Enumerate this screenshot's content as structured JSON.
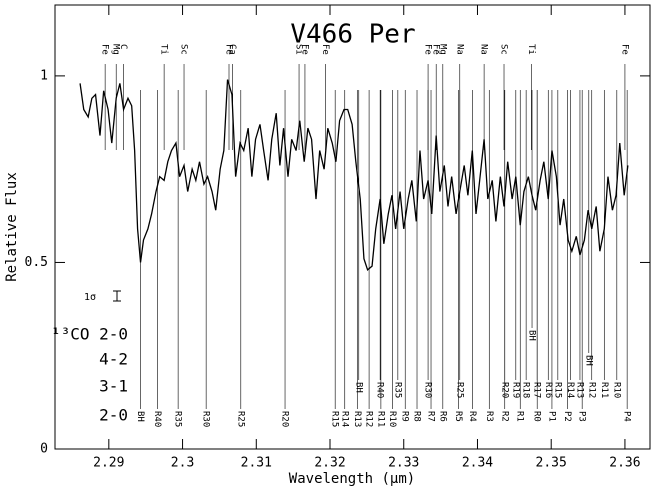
{
  "chart_data": {
    "type": "line",
    "title": "V466 Per",
    "xlabel": "Wavelength (μm)",
    "ylabel": "Relative Flux",
    "xlim": [
      2.2827,
      2.3634
    ],
    "ylim": [
      0,
      1.19
    ],
    "xticks": [
      2.29,
      2.3,
      2.31,
      2.32,
      2.33,
      2.34,
      2.35,
      2.36
    ],
    "yticks": [
      0,
      0.5,
      1
    ],
    "color": "#000000",
    "x": [
      2.2861,
      2.2866,
      2.2872,
      2.2877,
      2.2882,
      2.2888,
      2.2893,
      2.2899,
      2.2904,
      2.291,
      2.2915,
      2.292,
      2.2926,
      2.2931,
      2.2935,
      2.2939,
      2.2943,
      2.2947,
      2.2953,
      2.2958,
      2.2964,
      2.2969,
      2.2975,
      2.298,
      2.2985,
      2.2991,
      2.2996,
      2.3002,
      2.3007,
      2.3013,
      2.3018,
      2.3023,
      2.3029,
      2.3034,
      2.304,
      2.3045,
      2.3051,
      2.3056,
      2.3061,
      2.3067,
      2.3072,
      2.3078,
      2.3083,
      2.3089,
      2.3094,
      2.3099,
      2.3105,
      2.311,
      2.3116,
      2.3121,
      2.3127,
      2.3132,
      2.3137,
      2.3143,
      2.3148,
      2.3154,
      2.3159,
      2.3165,
      2.317,
      2.3175,
      2.3181,
      2.3186,
      2.3192,
      2.3197,
      2.3203,
      2.3208,
      2.3213,
      2.3219,
      2.3224,
      2.323,
      2.3235,
      2.3241,
      2.3246,
      2.3251,
      2.3257,
      2.3262,
      2.3268,
      2.3273,
      2.3279,
      2.3284,
      2.3289,
      2.3295,
      2.33,
      2.3306,
      2.3311,
      2.3317,
      2.3322,
      2.3327,
      2.3333,
      2.3338,
      2.3344,
      2.3349,
      2.3355,
      2.336,
      2.3365,
      2.3371,
      2.3376,
      2.3382,
      2.3387,
      2.3393,
      2.3398,
      2.3403,
      2.3409,
      2.3414,
      2.342,
      2.3425,
      2.3431,
      2.3436,
      2.3441,
      2.3447,
      2.3452,
      2.3458,
      2.3463,
      2.3469,
      2.3474,
      2.3479,
      2.3485,
      2.349,
      2.3496,
      2.3501,
      2.3507,
      2.3512,
      2.3517,
      2.3523,
      2.3528,
      2.3534,
      2.3539,
      2.3545,
      2.355,
      2.3555,
      2.3561,
      2.3566,
      2.3572,
      2.3577,
      2.3583,
      2.3588,
      2.3593,
      2.3599,
      2.3604
    ],
    "values": [
      0.98,
      0.91,
      0.89,
      0.94,
      0.95,
      0.84,
      0.96,
      0.91,
      0.82,
      0.94,
      0.98,
      0.91,
      0.94,
      0.92,
      0.8,
      0.59,
      0.5,
      0.56,
      0.59,
      0.63,
      0.69,
      0.73,
      0.72,
      0.77,
      0.8,
      0.82,
      0.73,
      0.76,
      0.69,
      0.75,
      0.72,
      0.77,
      0.71,
      0.73,
      0.69,
      0.64,
      0.75,
      0.8,
      0.99,
      0.95,
      0.73,
      0.82,
      0.8,
      0.86,
      0.73,
      0.83,
      0.87,
      0.8,
      0.72,
      0.83,
      0.9,
      0.76,
      0.86,
      0.73,
      0.83,
      0.8,
      0.88,
      0.77,
      0.86,
      0.83,
      0.67,
      0.8,
      0.75,
      0.86,
      0.82,
      0.77,
      0.88,
      0.91,
      0.91,
      0.87,
      0.77,
      0.67,
      0.51,
      0.48,
      0.49,
      0.59,
      0.67,
      0.55,
      0.63,
      0.68,
      0.59,
      0.69,
      0.59,
      0.67,
      0.72,
      0.61,
      0.8,
      0.67,
      0.72,
      0.63,
      0.84,
      0.69,
      0.76,
      0.65,
      0.73,
      0.63,
      0.69,
      0.76,
      0.68,
      0.8,
      0.63,
      0.72,
      0.83,
      0.67,
      0.72,
      0.61,
      0.73,
      0.65,
      0.77,
      0.67,
      0.73,
      0.6,
      0.69,
      0.73,
      0.68,
      0.64,
      0.72,
      0.77,
      0.67,
      0.8,
      0.73,
      0.6,
      0.67,
      0.56,
      0.53,
      0.57,
      0.52,
      0.56,
      0.64,
      0.59,
      0.65,
      0.53,
      0.59,
      0.73,
      0.64,
      0.68,
      0.82,
      0.68,
      0.76
    ],
    "sigma_label": "1σ",
    "atomic_ids": [
      {
        "x": 2.2895,
        "label": "Fe"
      },
      {
        "x": 2.291,
        "label": "Mg"
      },
      {
        "x": 2.292,
        "label": "C"
      },
      {
        "x": 2.2975,
        "label": "Ti"
      },
      {
        "x": 2.3002,
        "label": "Sc"
      },
      {
        "x": 2.3063,
        "label": "Fe"
      },
      {
        "x": 2.3068,
        "label": "Ca"
      },
      {
        "x": 2.3158,
        "label": "Si"
      },
      {
        "x": 2.3166,
        "label": "Fe"
      },
      {
        "x": 2.3194,
        "label": "Fe"
      },
      {
        "x": 2.3333,
        "label": "Fe"
      },
      {
        "x": 2.3344,
        "label": "Fe"
      },
      {
        "x": 2.3353,
        "label": "Mg"
      },
      {
        "x": 2.3376,
        "label": "Na"
      },
      {
        "x": 2.3409,
        "label": "Na"
      },
      {
        "x": 2.3436,
        "label": "Sc"
      },
      {
        "x": 2.3473,
        "label": "Ti"
      },
      {
        "x": 2.36,
        "label": "Fe"
      }
    ],
    "bands": [
      {
        "label": "2-0",
        "ids": [
          {
            "x": 2.2943,
            "label": "BH"
          },
          {
            "x": 2.2966,
            "label": "R40"
          },
          {
            "x": 2.2994,
            "label": "R35"
          },
          {
            "x": 2.3032,
            "label": "R30"
          },
          {
            "x": 2.3079,
            "label": "R25"
          },
          {
            "x": 2.3139,
            "label": "R20"
          },
          {
            "x": 2.3207,
            "label": "R15"
          },
          {
            "x": 2.322,
            "label": "R14"
          },
          {
            "x": 2.3237,
            "label": "R13"
          },
          {
            "x": 2.3253,
            "label": "R12"
          },
          {
            "x": 2.3269,
            "label": "R11"
          },
          {
            "x": 2.3285,
            "label": "R10"
          },
          {
            "x": 2.3302,
            "label": "R9"
          },
          {
            "x": 2.3318,
            "label": "R8"
          },
          {
            "x": 2.3337,
            "label": "R7"
          },
          {
            "x": 2.3353,
            "label": "R6"
          },
          {
            "x": 2.3374,
            "label": "R5"
          },
          {
            "x": 2.3393,
            "label": "R4"
          },
          {
            "x": 2.3416,
            "label": "R3"
          },
          {
            "x": 2.3437,
            "label": "R2"
          },
          {
            "x": 2.3458,
            "label": "R1"
          },
          {
            "x": 2.3481,
            "label": "R0"
          },
          {
            "x": 2.3501,
            "label": "P1"
          },
          {
            "x": 2.3522,
            "label": "P2"
          },
          {
            "x": 2.3542,
            "label": "P3"
          },
          {
            "x": 2.3603,
            "label": "P4"
          }
        ]
      },
      {
        "label": "3-1",
        "ids": [
          {
            "x": 2.3239,
            "label": "BH"
          },
          {
            "x": 2.3268,
            "label": "R40"
          },
          {
            "x": 2.3292,
            "label": "R35"
          },
          {
            "x": 2.3333,
            "label": "R30"
          },
          {
            "x": 2.3376,
            "label": "R25"
          },
          {
            "x": 2.3437,
            "label": "R20"
          },
          {
            "x": 2.3452,
            "label": "R19"
          },
          {
            "x": 2.3466,
            "label": "R18"
          },
          {
            "x": 2.3481,
            "label": "R17"
          },
          {
            "x": 2.3496,
            "label": "R16"
          },
          {
            "x": 2.3509,
            "label": "R15"
          },
          {
            "x": 2.3526,
            "label": "R14"
          },
          {
            "x": 2.3539,
            "label": "R13"
          },
          {
            "x": 2.3555,
            "label": "R12"
          },
          {
            "x": 2.3572,
            "label": "R11"
          },
          {
            "x": 2.3589,
            "label": "R10"
          }
        ]
      },
      {
        "label": "4-2",
        "ids": [
          {
            "x": 2.3551,
            "label": "BH"
          }
        ]
      },
      {
        "label": "¹³CO 2-0",
        "ids": [
          {
            "x": 2.3474,
            "label": "BH"
          }
        ]
      }
    ]
  }
}
